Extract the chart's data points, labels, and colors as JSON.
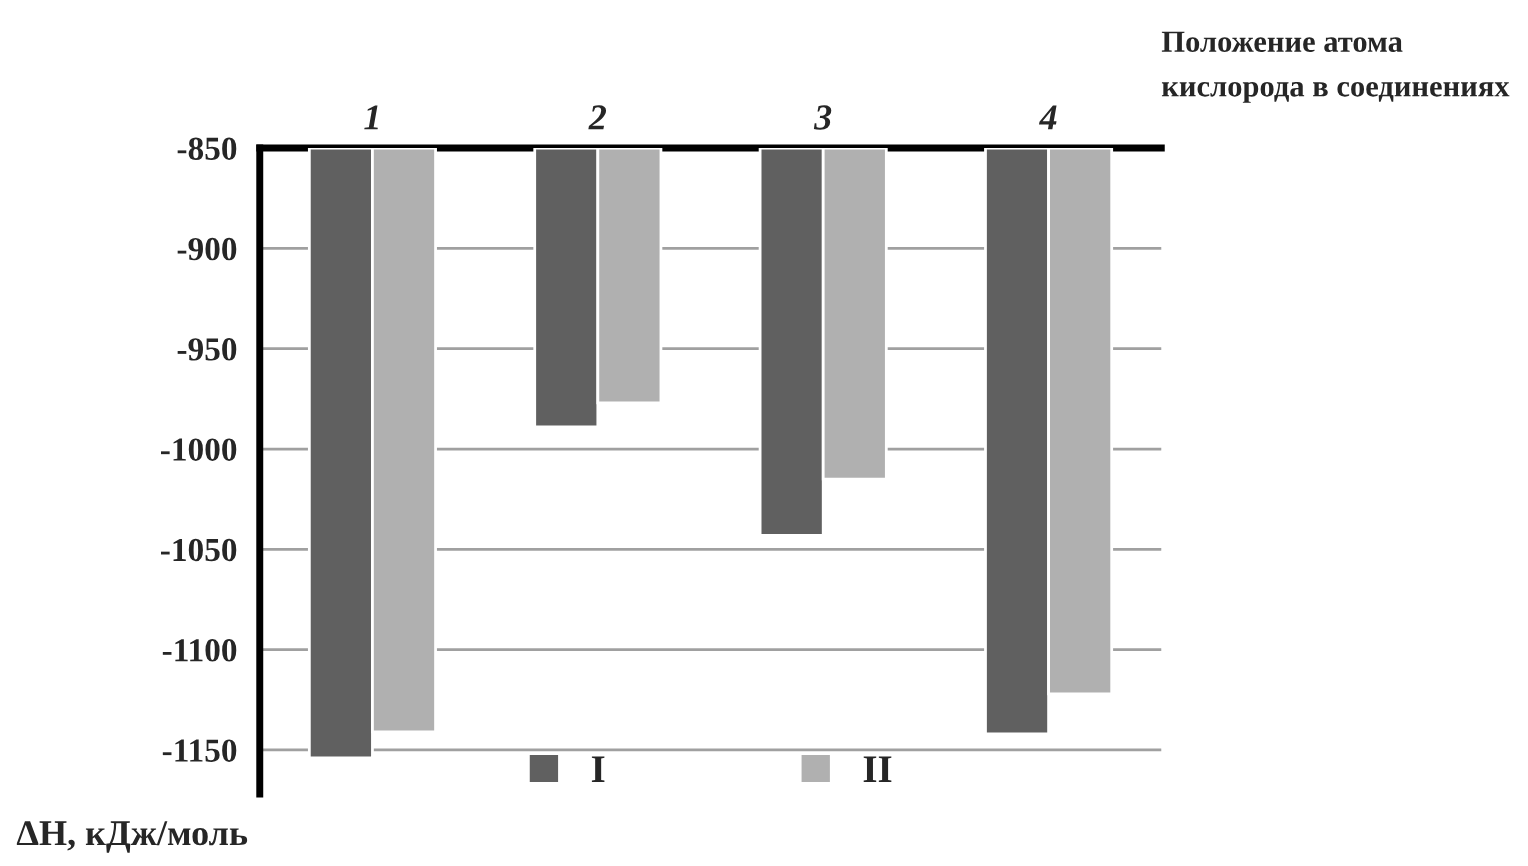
{
  "chart_data": {
    "type": "bar",
    "categories": [
      "1",
      "2",
      "3",
      "4"
    ],
    "series": [
      {
        "name": "I",
        "color": "#606060",
        "values": [
          -1154,
          -989,
          -1043,
          -1142
        ]
      },
      {
        "name": "II",
        "color": "#b0b0b0",
        "values": [
          -1141,
          -977,
          -1015,
          -1122
        ]
      }
    ],
    "xlabel": "Положение атома\nкислорода в соединениях",
    "ylabel": "ΔH, кДж/моль",
    "ylim": [
      -1172,
      -850
    ],
    "yticks": [
      -850,
      -900,
      -950,
      -1000,
      -1050,
      -1100,
      -1150
    ],
    "grid": "y",
    "legend": "bottom"
  }
}
